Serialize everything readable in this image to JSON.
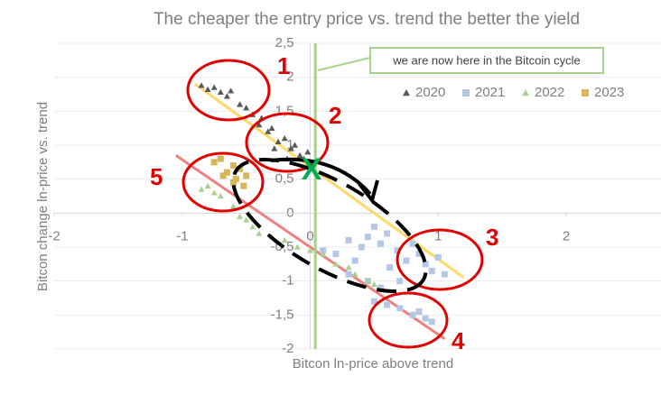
{
  "chart_data": {
    "type": "scatter",
    "title": "The cheaper the entry price vs. trend the better the yield",
    "x_label": "Bitcon ln-price above trend",
    "y_label": "Bitcon change ln-price vs. trend",
    "xlim": [
      -2,
      2.74
    ],
    "ylim": [
      -2,
      2.5
    ],
    "xticks": [
      -2,
      -1,
      0,
      1,
      2
    ],
    "yticks": [
      {
        "value": -2,
        "label": "-2"
      },
      {
        "value": -1.5,
        "label": "-1,5"
      },
      -1,
      {
        "value": -0.5,
        "label": "-0,5"
      },
      0,
      {
        "value": 0.5,
        "label": "0,5"
      },
      1,
      {
        "value": 1.5,
        "label": "1,5"
      },
      2,
      {
        "value": 2.5,
        "label": "2,5"
      }
    ],
    "grid": true,
    "legend": "top-right",
    "series": [
      {
        "name": "2020",
        "color": "#595959",
        "marker": "triangle",
        "x": [
          -0.85,
          -0.8,
          -0.75,
          -0.7,
          -0.65,
          -0.62,
          -0.55,
          -0.5,
          -0.45,
          -0.4,
          -0.38,
          -0.33,
          -0.3,
          -0.25,
          -0.2,
          -0.15,
          -0.12,
          -0.08,
          -0.05,
          -0.02,
          0.0,
          -0.28,
          -0.18
        ],
        "values": [
          1.88,
          1.82,
          1.85,
          1.78,
          1.72,
          1.8,
          1.6,
          1.55,
          1.45,
          1.3,
          1.4,
          1.2,
          1.25,
          1.05,
          1.1,
          0.95,
          1.0,
          0.85,
          0.8,
          0.9,
          0.75,
          0.95,
          0.8
        ]
      },
      {
        "name": "2021",
        "color": "#b4c7e7",
        "marker": "square",
        "x": [
          0.1,
          0.2,
          0.3,
          0.35,
          0.4,
          0.45,
          0.5,
          0.55,
          0.6,
          0.62,
          0.68,
          0.7,
          0.75,
          0.8,
          0.85,
          0.9,
          0.95,
          1.0,
          1.05,
          0.45,
          0.5,
          0.6,
          0.7,
          0.8,
          0.85,
          0.9,
          0.95,
          0.3,
          0.55
        ],
        "values": [
          -0.55,
          -0.6,
          -0.4,
          -0.7,
          -0.5,
          -0.35,
          -0.2,
          -0.45,
          -0.3,
          -0.8,
          -0.55,
          -1.0,
          -0.7,
          -0.45,
          -0.6,
          -0.75,
          -0.85,
          -0.65,
          -0.9,
          -1.0,
          -1.3,
          -1.35,
          -1.4,
          -1.5,
          -1.45,
          -1.55,
          -1.6,
          -0.9,
          -1.1
        ]
      },
      {
        "name": "2022",
        "color": "#a9d18e",
        "marker": "triangle",
        "x": [
          -0.85,
          -0.8,
          -0.75,
          -0.7,
          -0.6,
          -0.55,
          -0.5,
          -0.45,
          -0.4,
          -0.3,
          -0.2,
          -0.1,
          0.0,
          0.1,
          0.2,
          0.3,
          0.35,
          0.45,
          0.5
        ],
        "values": [
          0.35,
          0.4,
          0.3,
          0.25,
          0.1,
          -0.05,
          -0.1,
          -0.2,
          -0.3,
          -0.35,
          -0.4,
          -0.5,
          -0.55,
          -0.6,
          -0.75,
          -0.8,
          -0.9,
          -1.0,
          -1.05
        ]
      },
      {
        "name": "2023",
        "color": "#d6b656",
        "marker": "square",
        "x": [
          -0.75,
          -0.7,
          -0.65,
          -0.6,
          -0.58,
          -0.55,
          -0.52,
          -0.5,
          -0.6,
          -0.68
        ],
        "values": [
          0.75,
          0.8,
          0.6,
          0.7,
          0.5,
          0.65,
          0.4,
          0.55,
          0.45,
          0.55
        ]
      }
    ],
    "trendlines": [
      {
        "color": "#ffd966",
        "x": [
          -0.9,
          1.2
        ],
        "values": [
          1.9,
          -0.95
        ]
      },
      {
        "color": "#f08080",
        "x": [
          -1.05,
          1.05
        ],
        "values": [
          0.85,
          -1.85
        ]
      }
    ],
    "now_line": {
      "x": 0.04,
      "color": "#a9d18e"
    },
    "callout": "we are now here in the Bitcoin cycle",
    "annotations": [
      "1",
      "2",
      "3",
      "4",
      "5",
      "X"
    ]
  }
}
